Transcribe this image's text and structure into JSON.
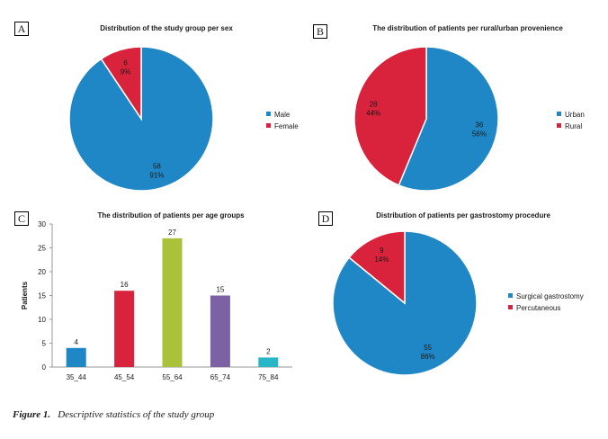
{
  "caption": {
    "label": "Figure 1.",
    "text": "Descriptive statistics of the study group"
  },
  "colors": {
    "blue": "#1f87c5",
    "red": "#d9223c",
    "green": "#aac13a",
    "purple": "#7c62a4",
    "cyan": "#28b6c9"
  },
  "chart_data": [
    {
      "panel": "A",
      "type": "pie",
      "title": "Distribution of the study group per sex",
      "legend_position": "right",
      "slices": [
        {
          "name": "Male",
          "value": 58,
          "percent": "91%",
          "color": "#1f87c5"
        },
        {
          "name": "Female",
          "value": 6,
          "percent": "9%",
          "color": "#d9223c"
        }
      ]
    },
    {
      "panel": "B",
      "type": "pie",
      "title": "The distribution of patients per rural/urban provenience",
      "legend_position": "right",
      "slices": [
        {
          "name": "Urban",
          "value": 36,
          "percent": "56%",
          "color": "#1f87c5"
        },
        {
          "name": "Rural",
          "value": 28,
          "percent": "44%",
          "color": "#d9223c"
        }
      ]
    },
    {
      "panel": "C",
      "type": "bar",
      "title": "The distribution of patients per age groups",
      "xlabel": "",
      "ylabel": "Patients",
      "ylim": [
        0,
        30
      ],
      "yticks": [
        0,
        5,
        10,
        15,
        20,
        25,
        30
      ],
      "grid": false,
      "categories": [
        "35_44",
        "45_54",
        "55_64",
        "65_74",
        "75_84"
      ],
      "values": [
        4,
        16,
        27,
        15,
        2
      ],
      "colors": [
        "#1f87c5",
        "#d9223c",
        "#aac13a",
        "#7c62a4",
        "#28b6c9"
      ]
    },
    {
      "panel": "D",
      "type": "pie",
      "title": "Distribution of patients per gastrostomy procedure",
      "legend_position": "right",
      "slices": [
        {
          "name": "Surgical gastrostomy",
          "value": 55,
          "percent": "86%",
          "color": "#1f87c5"
        },
        {
          "name": "Percutaneous",
          "value": 9,
          "percent": "14%",
          "color": "#d9223c"
        }
      ]
    }
  ]
}
